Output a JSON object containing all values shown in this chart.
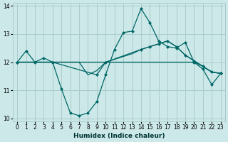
{
  "xlabel": "Humidex (Indice chaleur)",
  "bg_color": "#cce8e8",
  "grid_color": "#aacccc",
  "line_color": "#006666",
  "xlim": [
    -0.5,
    23.5
  ],
  "ylim": [
    9.9,
    14.1
  ],
  "yticks": [
    10,
    11,
    12,
    13,
    14
  ],
  "xticks": [
    0,
    1,
    2,
    3,
    4,
    5,
    6,
    7,
    8,
    9,
    10,
    11,
    12,
    13,
    14,
    15,
    16,
    17,
    18,
    19,
    20,
    21,
    22,
    23
  ],
  "series": [
    {
      "x": [
        0,
        1,
        2,
        3,
        4,
        5,
        6,
        7,
        8,
        9,
        10,
        11,
        12,
        13,
        14,
        15,
        16,
        17,
        18,
        19,
        20,
        21,
        22,
        23
      ],
      "y": [
        12.0,
        12.4,
        12.0,
        12.15,
        12.0,
        11.05,
        10.2,
        10.1,
        10.2,
        10.6,
        11.55,
        12.45,
        13.05,
        13.1,
        13.9,
        13.4,
        12.75,
        12.55,
        12.5,
        12.7,
        12.0,
        11.75,
        11.2,
        11.6
      ],
      "marker": true
    },
    {
      "x": [
        0,
        1,
        2,
        3,
        4,
        5,
        6,
        7,
        8,
        9,
        10,
        11,
        12,
        13,
        14,
        15,
        16,
        17,
        18,
        19,
        20,
        21,
        22,
        23
      ],
      "y": [
        12.0,
        12.0,
        12.0,
        12.0,
        12.0,
        12.0,
        12.0,
        12.0,
        12.0,
        12.0,
        12.0,
        12.1,
        12.2,
        12.3,
        12.45,
        12.55,
        12.65,
        12.75,
        12.55,
        12.25,
        12.05,
        11.85,
        11.65,
        11.6
      ],
      "marker": false
    },
    {
      "x": [
        0,
        1,
        2,
        3,
        4,
        5,
        6,
        7,
        8,
        9,
        10,
        11,
        12,
        13,
        14,
        15,
        16,
        17,
        18,
        19,
        20,
        21,
        22,
        23
      ],
      "y": [
        12.0,
        12.0,
        12.0,
        12.0,
        12.0,
        12.0,
        12.0,
        12.0,
        11.55,
        11.7,
        12.0,
        12.0,
        12.0,
        12.0,
        12.0,
        12.0,
        12.0,
        12.0,
        12.0,
        12.0,
        12.0,
        11.85,
        11.65,
        11.6
      ],
      "marker": false
    },
    {
      "x": [
        0,
        4,
        9,
        10,
        14,
        15,
        16,
        17,
        18,
        19,
        20,
        21,
        22,
        23
      ],
      "y": [
        12.0,
        12.0,
        11.55,
        12.0,
        12.45,
        12.55,
        12.65,
        12.75,
        12.55,
        12.25,
        12.05,
        11.85,
        11.65,
        11.6
      ],
      "marker": true
    }
  ]
}
